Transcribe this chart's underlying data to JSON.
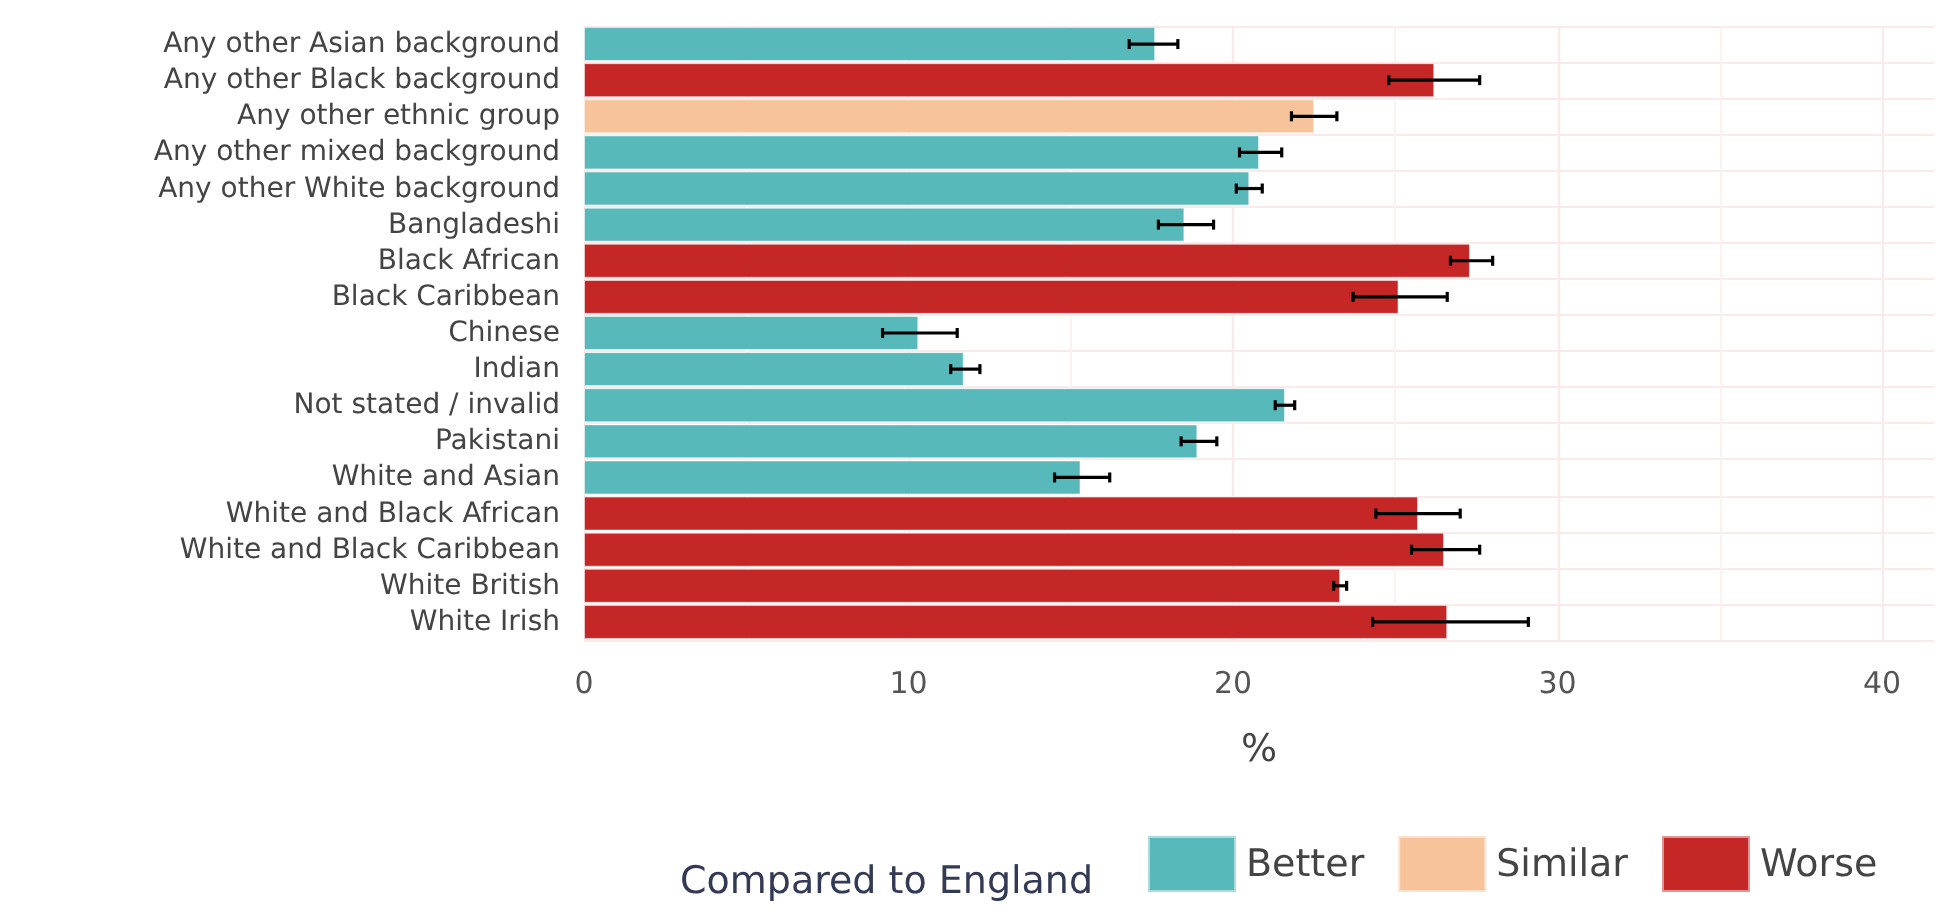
{
  "chart_data": {
    "type": "bar",
    "orientation": "horizontal",
    "xlabel": "%",
    "legend_title": "Compared to England",
    "legend": "bottom",
    "grid": true,
    "categories": [
      "Any other Asian background",
      "Any other Black background",
      "Any other ethnic group",
      "Any other mixed background",
      "Any other White background",
      "Bangladeshi",
      "Black African",
      "Black Caribbean",
      "Chinese",
      "Indian",
      "Not stated / invalid",
      "Pakistani",
      "White and Asian",
      "White and Black African",
      "White and Black Caribbean",
      "White British",
      "White Irish"
    ],
    "xlim": [
      0,
      41.6
    ],
    "xticks": [
      0,
      10,
      20,
      30,
      40
    ],
    "series": [
      {
        "name": "Better",
        "color": "#58b9bb",
        "values": [
          17.6,
          null,
          null,
          20.8,
          20.5,
          18.5,
          null,
          null,
          10.3,
          11.7,
          21.6,
          18.9,
          15.3,
          null,
          null,
          null,
          null
        ],
        "errors": [
          [
            16.8,
            18.3
          ],
          null,
          null,
          [
            20.2,
            21.5
          ],
          [
            20.1,
            20.9
          ],
          [
            17.7,
            19.4
          ],
          null,
          null,
          [
            9.2,
            11.5
          ],
          [
            11.3,
            12.2
          ],
          [
            21.3,
            21.9
          ],
          [
            18.4,
            19.5
          ],
          [
            14.5,
            16.2
          ],
          null,
          null,
          null,
          null
        ]
      },
      {
        "name": "Similar",
        "color": "#f7c39b",
        "values": [
          null,
          null,
          22.5,
          null,
          null,
          null,
          null,
          null,
          null,
          null,
          null,
          null,
          null,
          null,
          null,
          null,
          null
        ],
        "errors": [
          null,
          null,
          [
            21.8,
            23.2
          ],
          null,
          null,
          null,
          null,
          null,
          null,
          null,
          null,
          null,
          null,
          null,
          null,
          null,
          null
        ]
      },
      {
        "name": "Worse",
        "color": "#c42726",
        "values": [
          null,
          26.2,
          null,
          null,
          null,
          null,
          27.3,
          25.1,
          null,
          null,
          null,
          null,
          null,
          25.7,
          26.5,
          23.3,
          26.6
        ],
        "errors": [
          null,
          [
            24.8,
            27.6
          ],
          null,
          null,
          null,
          null,
          [
            26.7,
            28.0
          ],
          [
            23.7,
            26.6
          ],
          null,
          null,
          null,
          null,
          null,
          [
            24.4,
            27.0
          ],
          [
            25.5,
            27.6
          ],
          [
            23.1,
            23.5
          ],
          [
            24.3,
            29.1
          ]
        ]
      }
    ]
  }
}
